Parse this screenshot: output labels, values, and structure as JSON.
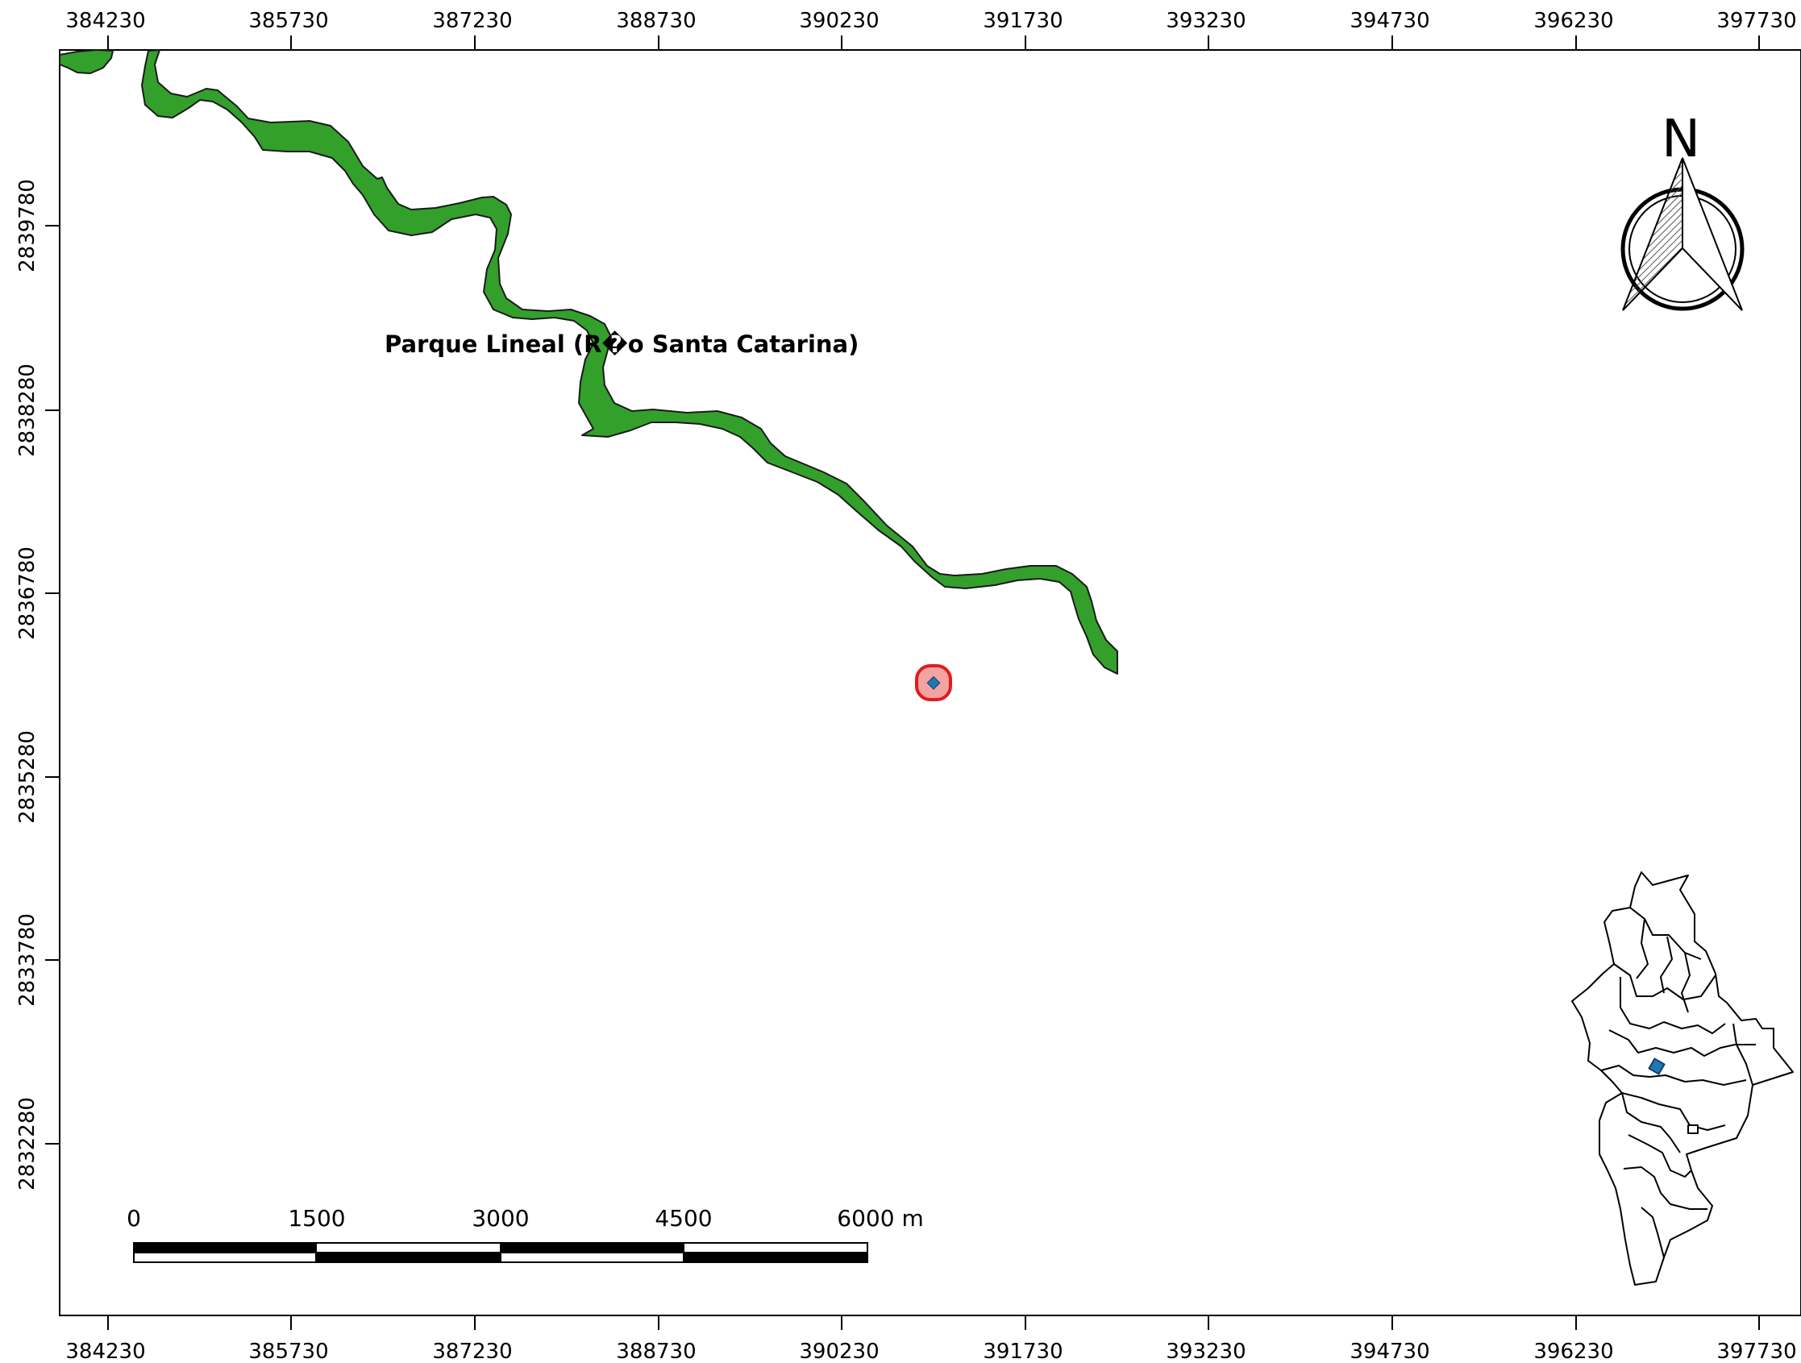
{
  "map": {
    "x_ticks_top": [
      "384230",
      "385730",
      "387230",
      "388730",
      "390230",
      "391730",
      "393230",
      "394730",
      "396230",
      "397730"
    ],
    "x_ticks_bottom": [
      "384230",
      "385730",
      "387230",
      "388730",
      "390230",
      "391730",
      "393230",
      "394730",
      "396230",
      "397730"
    ],
    "y_ticks": [
      "2839780",
      "2838280",
      "2836780",
      "2835280",
      "2833780",
      "2832280"
    ],
    "river_label": "Parque Lineal (R�o Santa Catarina)",
    "north_label": "N",
    "scale_labels": [
      "0",
      "1500",
      "3000",
      "4500",
      "6000 m"
    ],
    "colors": {
      "river_fill": "#33a02c",
      "site_buffer_fill": "#f4a3a3",
      "site_buffer_stroke": "#e31a1c",
      "site_point": "#1f78b4",
      "frame": "#000000"
    },
    "icons": {
      "north_arrow": "north-arrow-icon",
      "locator": "locator-inset-map"
    }
  }
}
